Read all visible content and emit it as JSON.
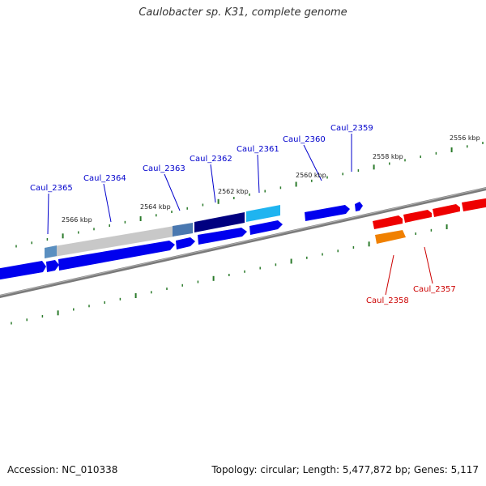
{
  "title": "Caulobacter sp. K31, complete genome",
  "accession": "Accession: NC_010338",
  "summary": "Topology: circular; Length: 5,477,872 bp; Genes: 5,117",
  "colors": {
    "tick": "#2a7a2a",
    "label_blue": "#0000cc",
    "label_red": "#cc0000",
    "backbone": "#8a8a8a"
  },
  "kbp_ticks": [
    "2566 kbp",
    "2564 kbp",
    "2562 kbp",
    "2560 kbp",
    "2558 kbp",
    "2556 kbp"
  ],
  "gene_labels": [
    "Caul_2365",
    "Caul_2364",
    "Caul_2363",
    "Caul_2362",
    "Caul_2361",
    "Caul_2360",
    "Caul_2359",
    "Caul_2358",
    "Caul_2357"
  ]
}
